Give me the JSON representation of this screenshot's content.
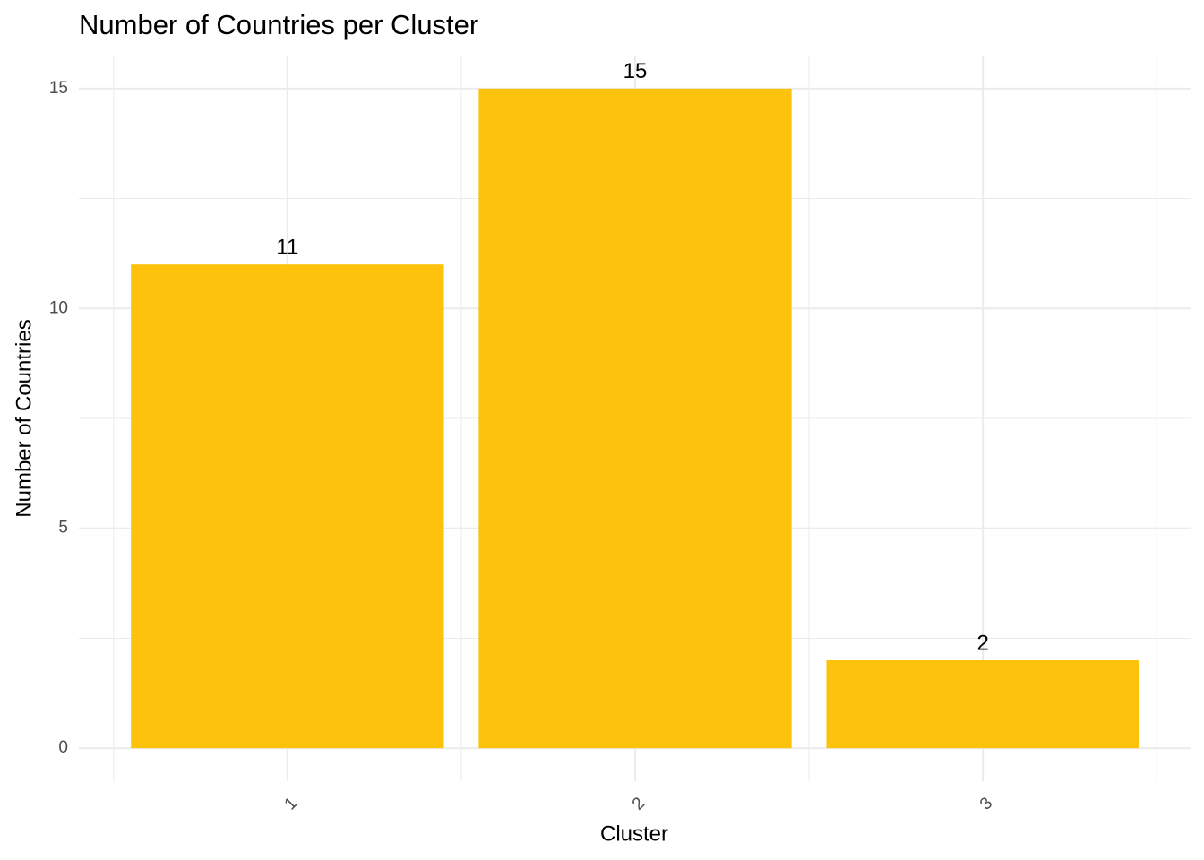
{
  "chart_data": {
    "type": "bar",
    "title": "Number of Countries per Cluster",
    "x_label": "Cluster",
    "y_label": "Number of Countries",
    "categories": [
      "1",
      "2",
      "3"
    ],
    "values": [
      11,
      15,
      2
    ],
    "color": "#fdc20b",
    "ylim": [
      -0.75,
      15.75
    ],
    "yticks": [
      0,
      5,
      10,
      15
    ],
    "grid": true
  }
}
